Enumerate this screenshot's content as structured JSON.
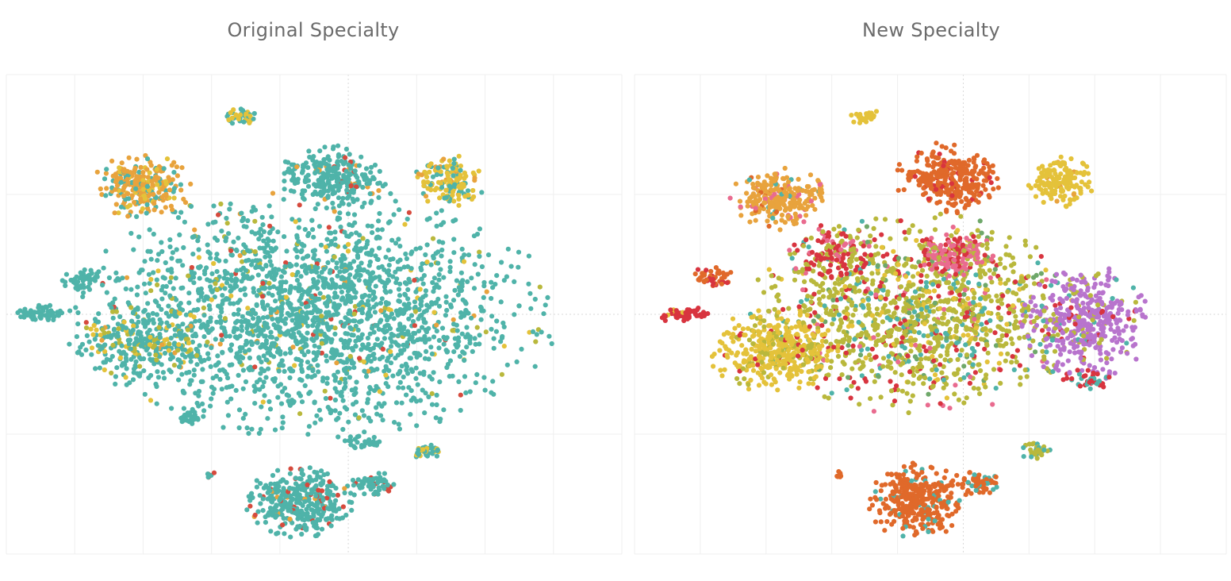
{
  "chart_data": [
    {
      "type": "scatter",
      "title": "Original Specialty",
      "grid": true,
      "colors": {
        "teal": "#4fb3a9",
        "orange": "#e8a33d",
        "yellow": "#e4c23a",
        "olive": "#b9b83c",
        "red": "#d64a3d",
        "green": "#6fa86a"
      },
      "clusters": [
        {
          "cx": 0.0,
          "cy": 0.0,
          "rx": 5.3,
          "ry": 3.0,
          "n": 2100,
          "mix": {
            "teal": 0.9,
            "olive": 0.04,
            "yellow": 0.03,
            "orange": 0.015,
            "red": 0.015
          }
        },
        {
          "cx": -3.9,
          "cy": -0.7,
          "rx": 1.6,
          "ry": 1.0,
          "n": 260,
          "mix": {
            "teal": 0.62,
            "olive": 0.2,
            "yellow": 0.12,
            "orange": 0.06
          }
        },
        {
          "cx": -3.8,
          "cy": 3.1,
          "rx": 1.1,
          "ry": 0.75,
          "n": 260,
          "mix": {
            "orange": 0.62,
            "yellow": 0.12,
            "teal": 0.26
          }
        },
        {
          "cx": -1.6,
          "cy": 4.8,
          "rx": 0.45,
          "ry": 0.25,
          "n": 40,
          "mix": {
            "yellow": 0.5,
            "teal": 0.5
          }
        },
        {
          "cx": 0.4,
          "cy": 3.3,
          "rx": 1.2,
          "ry": 0.8,
          "n": 260,
          "mix": {
            "teal": 0.92,
            "red": 0.04,
            "orange": 0.04
          }
        },
        {
          "cx": 3.0,
          "cy": 3.2,
          "rx": 0.8,
          "ry": 0.65,
          "n": 160,
          "mix": {
            "yellow": 0.6,
            "teal": 0.3,
            "orange": 0.1
          }
        },
        {
          "cx": -5.1,
          "cy": 0.8,
          "rx": 0.45,
          "ry": 0.3,
          "n": 50,
          "mix": {
            "teal": 1.0
          }
        },
        {
          "cx": -6.0,
          "cy": 0.0,
          "rx": 0.6,
          "ry": 0.25,
          "n": 60,
          "mix": {
            "teal": 1.0
          }
        },
        {
          "cx": -0.3,
          "cy": -4.5,
          "rx": 1.2,
          "ry": 0.9,
          "n": 360,
          "mix": {
            "teal": 0.9,
            "red": 0.08,
            "orange": 0.02
          }
        },
        {
          "cx": 1.3,
          "cy": -4.1,
          "rx": 0.55,
          "ry": 0.3,
          "n": 60,
          "mix": {
            "teal": 0.9,
            "red": 0.1
          }
        },
        {
          "cx": 2.5,
          "cy": -3.3,
          "rx": 0.35,
          "ry": 0.2,
          "n": 35,
          "mix": {
            "teal": 0.8,
            "yellow": 0.2
          }
        },
        {
          "cx": 1.0,
          "cy": -3.1,
          "rx": 0.45,
          "ry": 0.2,
          "n": 30,
          "mix": {
            "teal": 1.0
          }
        },
        {
          "cx": -2.3,
          "cy": -3.9,
          "rx": 0.12,
          "ry": 0.1,
          "n": 8,
          "mix": {
            "teal": 0.6,
            "red": 0.4
          }
        },
        {
          "cx": -2.8,
          "cy": -2.5,
          "rx": 0.35,
          "ry": 0.2,
          "n": 25,
          "mix": {
            "teal": 1.0
          }
        }
      ]
    },
    {
      "type": "scatter",
      "title": "New Specialty",
      "grid": true,
      "colors": {
        "teal": "#4fb3a9",
        "orange": "#e8a33d",
        "yellow": "#e4c23a",
        "olive": "#b9b83c",
        "red": "#d64a3d",
        "green": "#6fa86a",
        "burnt": "#e0692a",
        "pink": "#e96b8f",
        "purple": "#b874cd",
        "crimson": "#d8343f"
      },
      "clusters": [
        {
          "cx": -0.3,
          "cy": 0.0,
          "rx": 3.8,
          "ry": 2.4,
          "n": 1300,
          "mix": {
            "olive": 0.6,
            "yellow": 0.1,
            "teal": 0.1,
            "crimson": 0.1,
            "pink": 0.05,
            "green": 0.05
          }
        },
        {
          "cx": -3.6,
          "cy": -0.9,
          "rx": 1.5,
          "ry": 1.0,
          "n": 380,
          "mix": {
            "yellow": 0.8,
            "olive": 0.15,
            "crimson": 0.05
          }
        },
        {
          "cx": 3.6,
          "cy": -0.2,
          "rx": 1.5,
          "ry": 1.4,
          "n": 420,
          "mix": {
            "purple": 0.8,
            "olive": 0.1,
            "crimson": 0.05,
            "teal": 0.05
          }
        },
        {
          "cx": -2.3,
          "cy": 1.5,
          "rx": 1.0,
          "ry": 0.7,
          "n": 150,
          "mix": {
            "crimson": 0.55,
            "olive": 0.3,
            "pink": 0.15
          }
        },
        {
          "cx": 0.6,
          "cy": 1.5,
          "rx": 0.9,
          "ry": 0.6,
          "n": 160,
          "mix": {
            "pink": 0.55,
            "crimson": 0.3,
            "olive": 0.15
          }
        },
        {
          "cx": 0.4,
          "cy": 3.3,
          "rx": 1.2,
          "ry": 0.85,
          "n": 320,
          "mix": {
            "burnt": 0.92,
            "crimson": 0.08
          }
        },
        {
          "cx": -3.5,
          "cy": 2.8,
          "rx": 1.1,
          "ry": 0.75,
          "n": 260,
          "mix": {
            "orange": 0.82,
            "pink": 0.1,
            "teal": 0.04,
            "burnt": 0.04
          }
        },
        {
          "cx": 3.0,
          "cy": 3.2,
          "rx": 0.75,
          "ry": 0.6,
          "n": 150,
          "mix": {
            "yellow": 0.95,
            "orange": 0.05
          }
        },
        {
          "cx": -1.5,
          "cy": 4.8,
          "rx": 0.4,
          "ry": 0.2,
          "n": 30,
          "mix": {
            "yellow": 1.0
          }
        },
        {
          "cx": -5.0,
          "cy": 0.9,
          "rx": 0.45,
          "ry": 0.3,
          "n": 50,
          "mix": {
            "burnt": 0.7,
            "crimson": 0.3
          }
        },
        {
          "cx": -5.7,
          "cy": 0.0,
          "rx": 0.6,
          "ry": 0.2,
          "n": 60,
          "mix": {
            "crimson": 0.9,
            "yellow": 0.1
          }
        },
        {
          "cx": -0.3,
          "cy": -4.5,
          "rx": 1.2,
          "ry": 0.9,
          "n": 360,
          "mix": {
            "burnt": 0.92,
            "teal": 0.08
          }
        },
        {
          "cx": 1.1,
          "cy": -4.1,
          "rx": 0.5,
          "ry": 0.3,
          "n": 60,
          "mix": {
            "burnt": 0.85,
            "teal": 0.15
          }
        },
        {
          "cx": 2.4,
          "cy": -3.3,
          "rx": 0.35,
          "ry": 0.2,
          "n": 35,
          "mix": {
            "olive": 0.8,
            "teal": 0.2
          }
        },
        {
          "cx": 3.6,
          "cy": -1.6,
          "rx": 0.6,
          "ry": 0.3,
          "n": 40,
          "mix": {
            "crimson": 0.6,
            "teal": 0.4
          }
        },
        {
          "cx": -2.1,
          "cy": -3.9,
          "rx": 0.12,
          "ry": 0.1,
          "n": 8,
          "mix": {
            "burnt": 1.0
          }
        }
      ]
    }
  ]
}
